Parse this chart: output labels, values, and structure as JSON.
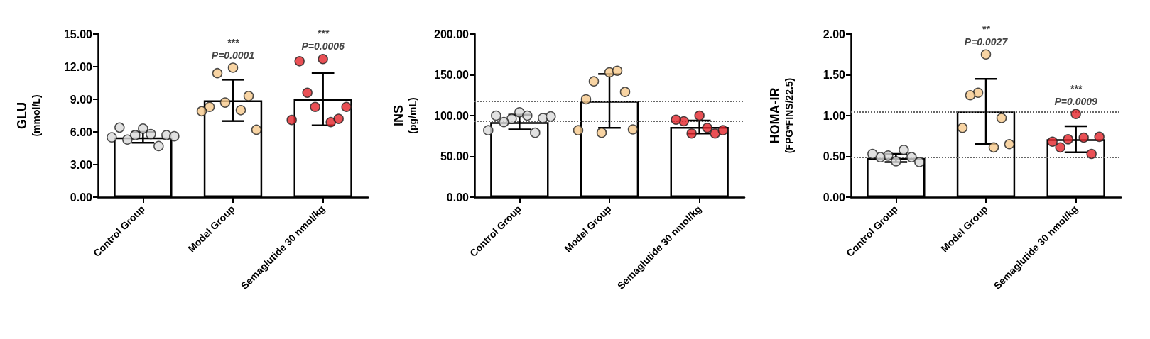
{
  "chart_data": [
    {
      "type": "bar",
      "ylabel": "GLU\n(mmol/L)",
      "categories": [
        "Control Group",
        "Model Group",
        "Semaglutide 30 nmol/kg"
      ],
      "series": [
        {
          "color": "#ffffff",
          "values": [
            5.5,
            8.9,
            9.0
          ],
          "errors": [
            0.5,
            1.9,
            2.4
          ]
        },
        {
          "type": "scatter",
          "x": [
            "Control Group",
            "Control Group",
            "Control Group",
            "Control Group",
            "Control Group",
            "Control Group",
            "Control Group",
            "Control Group",
            "Control Group",
            "Model Group",
            "Model Group",
            "Model Group",
            "Model Group",
            "Model Group",
            "Model Group",
            "Model Group",
            "Model Group",
            "Semaglutide 30 nmol/kg",
            "Semaglutide 30 nmol/kg",
            "Semaglutide 30 nmol/kg",
            "Semaglutide 30 nmol/kg",
            "Semaglutide 30 nmol/kg",
            "Semaglutide 30 nmol/kg",
            "Semaglutide 30 nmol/kg",
            "Semaglutide 30 nmol/kg"
          ],
          "values": [
            6.3,
            5.7,
            5.8,
            5.3,
            4.7,
            6.4,
            5.7,
            5.5,
            5.6,
            11.9,
            8.7,
            8.0,
            11.4,
            9.3,
            8.3,
            6.2,
            7.9,
            12.7,
            8.3,
            6.9,
            9.6,
            7.2,
            12.5,
            8.3,
            7.1
          ],
          "colors": [
            "#d9d9d9",
            "#d9d9d9",
            "#d9d9d9",
            "#d9d9d9",
            "#d9d9d9",
            "#d9d9d9",
            "#d9d9d9",
            "#d9d9d9",
            "#d9d9d9",
            "#f6c98c",
            "#f6c98c",
            "#f6c98c",
            "#f6c98c",
            "#f6c98c",
            "#f6c98c",
            "#f6c98c",
            "#f6c98c",
            "#e3242b",
            "#e3242b",
            "#e3242b",
            "#e3242b",
            "#e3242b",
            "#e3242b",
            "#e3242b",
            "#e3242b"
          ]
        }
      ],
      "ylim": [
        0,
        15
      ],
      "yticks": [
        {
          "value": 0,
          "label": "0.00"
        },
        {
          "value": 3,
          "label": "3.00"
        },
        {
          "value": 6,
          "label": "6.00"
        },
        {
          "value": 9,
          "label": "9.00"
        },
        {
          "value": 12,
          "label": "12.00"
        },
        {
          "value": 15,
          "label": "15.00"
        }
      ],
      "annotations": [
        {
          "text": "***",
          "x": "Model Group",
          "y": 11.9
        },
        {
          "text": "P=0.0001",
          "x": "Model Group",
          "y": 11.9
        },
        {
          "text": "***",
          "x": "Semaglutide 30 nmol/kg",
          "y": 12.7
        },
        {
          "text": "P=0.0006",
          "x": "Semaglutide 30 nmol/kg",
          "y": 12.7
        }
      ],
      "marker": "circle",
      "grid": false
    },
    {
      "type": "bar",
      "ylabel": "INS\n(pg/mL)",
      "categories": [
        "Control Group",
        "Model Group",
        "Semaglutide 30 nmol/kg"
      ],
      "series": [
        {
          "color": "#ffffff",
          "values": [
            92,
            118,
            86
          ],
          "errors": [
            9,
            33,
            8
          ]
        },
        {
          "type": "scatter",
          "x": [
            "Control Group",
            "Control Group",
            "Control Group",
            "Control Group",
            "Control Group",
            "Control Group",
            "Control Group",
            "Control Group",
            "Control Group",
            "Model Group",
            "Model Group",
            "Model Group",
            "Model Group",
            "Model Group",
            "Model Group",
            "Model Group",
            "Model Group",
            "Semaglutide 30 nmol/kg",
            "Semaglutide 30 nmol/kg",
            "Semaglutide 30 nmol/kg",
            "Semaglutide 30 nmol/kg",
            "Semaglutide 30 nmol/kg",
            "Semaglutide 30 nmol/kg",
            "Semaglutide 30 nmol/kg"
          ],
          "values": [
            104,
            96,
            100,
            92,
            79,
            100,
            97,
            82,
            99,
            153,
            79,
            155,
            142,
            129,
            120,
            83,
            82,
            100,
            78,
            85,
            93,
            78,
            95,
            82
          ],
          "colors": [
            "#d9d9d9",
            "#d9d9d9",
            "#d9d9d9",
            "#d9d9d9",
            "#d9d9d9",
            "#d9d9d9",
            "#d9d9d9",
            "#d9d9d9",
            "#d9d9d9",
            "#f6c98c",
            "#f6c98c",
            "#f6c98c",
            "#f6c98c",
            "#f6c98c",
            "#f6c98c",
            "#f6c98c",
            "#f6c98c",
            "#e3242b",
            "#e3242b",
            "#e3242b",
            "#e3242b",
            "#e3242b",
            "#e3242b",
            "#e3242b"
          ]
        }
      ],
      "ylim": [
        0,
        200
      ],
      "yticks": [
        {
          "value": 0,
          "label": "0.00"
        },
        {
          "value": 50,
          "label": "50.00"
        },
        {
          "value": 100,
          "label": "100.00"
        },
        {
          "value": 150,
          "label": "150.00"
        },
        {
          "value": 200,
          "label": "200.00"
        }
      ],
      "ref_lines": [
        {
          "axis": "y",
          "value": 118,
          "color": "#666666",
          "line_style": "dotted"
        },
        {
          "axis": "y",
          "value": 93,
          "color": "#666666",
          "line_style": "dotted"
        }
      ],
      "marker": "circle",
      "grid": false
    },
    {
      "type": "bar",
      "ylabel": "HOMA-IR\n(FPG*FINS/22.5)",
      "categories": [
        "Control Group",
        "Model Group",
        "Semaglutide 30 nmol/kg"
      ],
      "series": [
        {
          "color": "#ffffff",
          "values": [
            0.48,
            1.05,
            0.71
          ],
          "errors": [
            0.05,
            0.4,
            0.16
          ]
        },
        {
          "type": "scatter",
          "x": [
            "Control Group",
            "Control Group",
            "Control Group",
            "Control Group",
            "Control Group",
            "Control Group",
            "Control Group",
            "Model Group",
            "Model Group",
            "Model Group",
            "Model Group",
            "Model Group",
            "Model Group",
            "Model Group",
            "Semaglutide 30 nmol/kg",
            "Semaglutide 30 nmol/kg",
            "Semaglutide 30 nmol/kg",
            "Semaglutide 30 nmol/kg",
            "Semaglutide 30 nmol/kg",
            "Semaglutide 30 nmol/kg",
            "Semaglutide 30 nmol/kg"
          ],
          "values": [
            0.44,
            0.51,
            0.58,
            0.49,
            0.49,
            0.53,
            0.43,
            1.75,
            1.28,
            0.61,
            1.25,
            0.97,
            0.85,
            0.65,
            1.02,
            0.71,
            0.73,
            0.61,
            0.53,
            0.68,
            0.74
          ],
          "colors": [
            "#d9d9d9",
            "#d9d9d9",
            "#d9d9d9",
            "#d9d9d9",
            "#d9d9d9",
            "#d9d9d9",
            "#d9d9d9",
            "#f6c98c",
            "#f6c98c",
            "#f6c98c",
            "#f6c98c",
            "#f6c98c",
            "#f6c98c",
            "#f6c98c",
            "#e3242b",
            "#e3242b",
            "#e3242b",
            "#e3242b",
            "#e3242b",
            "#e3242b",
            "#e3242b"
          ]
        }
      ],
      "ylim": [
        0,
        2
      ],
      "yticks": [
        {
          "value": 0,
          "label": "0.00"
        },
        {
          "value": 0.5,
          "label": "0.50"
        },
        {
          "value": 1,
          "label": "1.00"
        },
        {
          "value": 1.5,
          "label": "1.50"
        },
        {
          "value": 2,
          "label": "2.00"
        }
      ],
      "ref_lines": [
        {
          "axis": "y",
          "value": 1.05,
          "color": "#666666",
          "line_style": "dotted"
        },
        {
          "axis": "y",
          "value": 0.49,
          "color": "#666666",
          "line_style": "dotted"
        }
      ],
      "annotations": [
        {
          "text": "**",
          "x": "Model Group",
          "y": 1.75
        },
        {
          "text": "P=0.0027",
          "x": "Model Group",
          "y": 1.75
        },
        {
          "text": "***",
          "x": "Semaglutide 30 nmol/kg",
          "y": 1.02
        },
        {
          "text": "P=0.0009",
          "x": "Semaglutide 30 nmol/kg",
          "y": 1.02
        }
      ],
      "marker": "circle",
      "grid": false
    }
  ]
}
